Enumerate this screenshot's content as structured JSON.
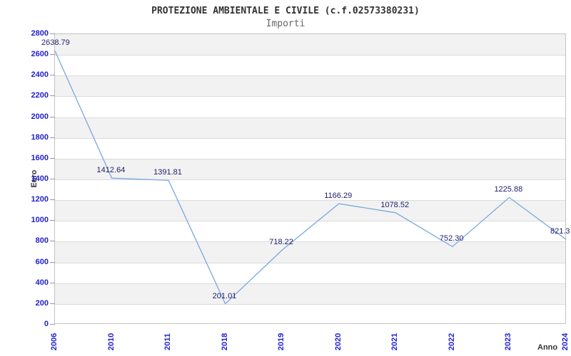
{
  "chart_data": {
    "type": "line",
    "title": "PROTEZIONE AMBIENTALE E CIVILE (c.f.02573380231)",
    "subtitle": "Importi",
    "xlabel": "Anno",
    "ylabel": "Euro",
    "categories": [
      "2006",
      "2010",
      "2011",
      "2018",
      "2019",
      "2020",
      "2021",
      "2022",
      "2023",
      "2024"
    ],
    "values": [
      2638.79,
      1412.64,
      1391.81,
      201.01,
      718.22,
      1166.29,
      1078.52,
      752.3,
      1225.88,
      821.3
    ],
    "point_labels": [
      "2638.79",
      "1412.64",
      "1391.81",
      "201.01",
      "718.22",
      "1166.29",
      "1078.52",
      "752.30",
      "1225.88",
      "821.3"
    ],
    "ylim": [
      0,
      2800
    ],
    "y_tick_step": 200,
    "grid": true,
    "legend_position": "none",
    "colors": {
      "line": "#7aa8df",
      "tick_labels": "#2121d3",
      "point_labels": "#22226e",
      "title": "#333333",
      "subtitle": "#666666",
      "axis_titles": "#333333",
      "band_fill": "#f2f2f2",
      "grid_line": "#dcdcdc",
      "plot_border": "#c2c2c2",
      "background": "#ffffff"
    }
  }
}
